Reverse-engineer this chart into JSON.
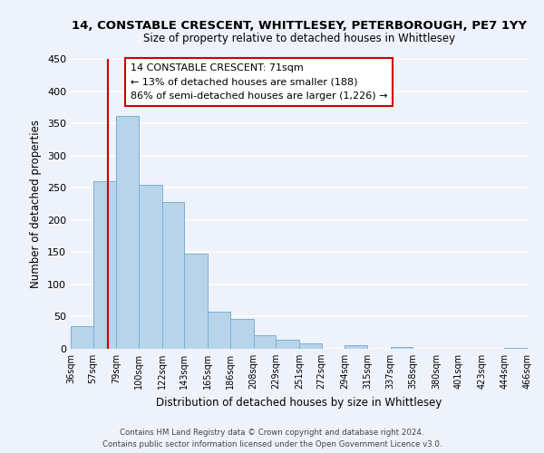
{
  "title": "14, CONSTABLE CRESCENT, WHITTLESEY, PETERBOROUGH, PE7 1YY",
  "subtitle": "Size of property relative to detached houses in Whittlesey",
  "xlabel": "Distribution of detached houses by size in Whittlesey",
  "ylabel": "Number of detached properties",
  "bar_color": "#b8d4ea",
  "bar_edge_color": "#7aafd4",
  "marker_line_color": "#cc0000",
  "marker_value": 71,
  "bins": [
    36,
    57,
    79,
    100,
    122,
    143,
    165,
    186,
    208,
    229,
    251,
    272,
    294,
    315,
    337,
    358,
    380,
    401,
    423,
    444,
    466
  ],
  "bin_labels": [
    "36sqm",
    "57sqm",
    "79sqm",
    "100sqm",
    "122sqm",
    "143sqm",
    "165sqm",
    "186sqm",
    "208sqm",
    "229sqm",
    "251sqm",
    "272sqm",
    "294sqm",
    "315sqm",
    "337sqm",
    "358sqm",
    "380sqm",
    "401sqm",
    "423sqm",
    "444sqm",
    "466sqm"
  ],
  "counts": [
    35,
    260,
    362,
    255,
    228,
    148,
    57,
    46,
    21,
    14,
    8,
    0,
    6,
    0,
    3,
    0,
    0,
    0,
    0,
    2
  ],
  "ylim": [
    0,
    450
  ],
  "yticks": [
    0,
    50,
    100,
    150,
    200,
    250,
    300,
    350,
    400,
    450
  ],
  "annotation_title": "14 CONSTABLE CRESCENT: 71sqm",
  "annotation_line1": "← 13% of detached houses are smaller (188)",
  "annotation_line2": "86% of semi-detached houses are larger (1,226) →",
  "annotation_box_color": "#ffffff",
  "annotation_box_edge": "#cc0000",
  "footnote1": "Contains HM Land Registry data © Crown copyright and database right 2024.",
  "footnote2": "Contains public sector information licensed under the Open Government Licence v3.0.",
  "background_color": "#eef2fa",
  "grid_color": "#ffffff"
}
